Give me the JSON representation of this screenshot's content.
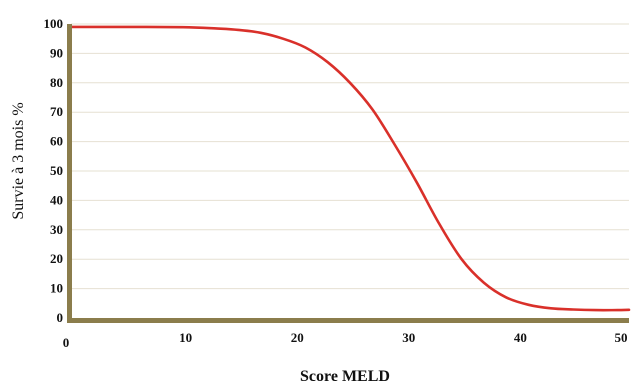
{
  "chart_data": {
    "type": "line",
    "title": "",
    "xlabel": "Score MELD",
    "ylabel": "Survie à 3 mois %",
    "xlim": [
      0,
      50
    ],
    "ylim": [
      0,
      100
    ],
    "xticks": [
      "0",
      "10",
      "20",
      "30",
      "40",
      "50"
    ],
    "yticks": [
      "0",
      "10",
      "20",
      "30",
      "40",
      "50",
      "60",
      "70",
      "80",
      "90",
      "100"
    ],
    "grid": "horizontal",
    "legend": "none",
    "series": [
      {
        "x": [
          0,
          5,
          10,
          13,
          15,
          17,
          19,
          21,
          23,
          25,
          27,
          29,
          31,
          33,
          35,
          37,
          39,
          41,
          43,
          45,
          47,
          49,
          50
        ],
        "values": [
          99,
          99,
          98.9,
          98.5,
          98,
          97,
          95,
          92,
          87,
          80,
          71,
          59,
          46,
          32,
          20,
          12,
          7,
          4.5,
          3.3,
          2.9,
          2.7,
          2.7,
          2.8
        ]
      }
    ],
    "colors": {
      "line": "#d9302a",
      "axis": "#8b7d4c",
      "grid": "#e6e0d2"
    }
  }
}
